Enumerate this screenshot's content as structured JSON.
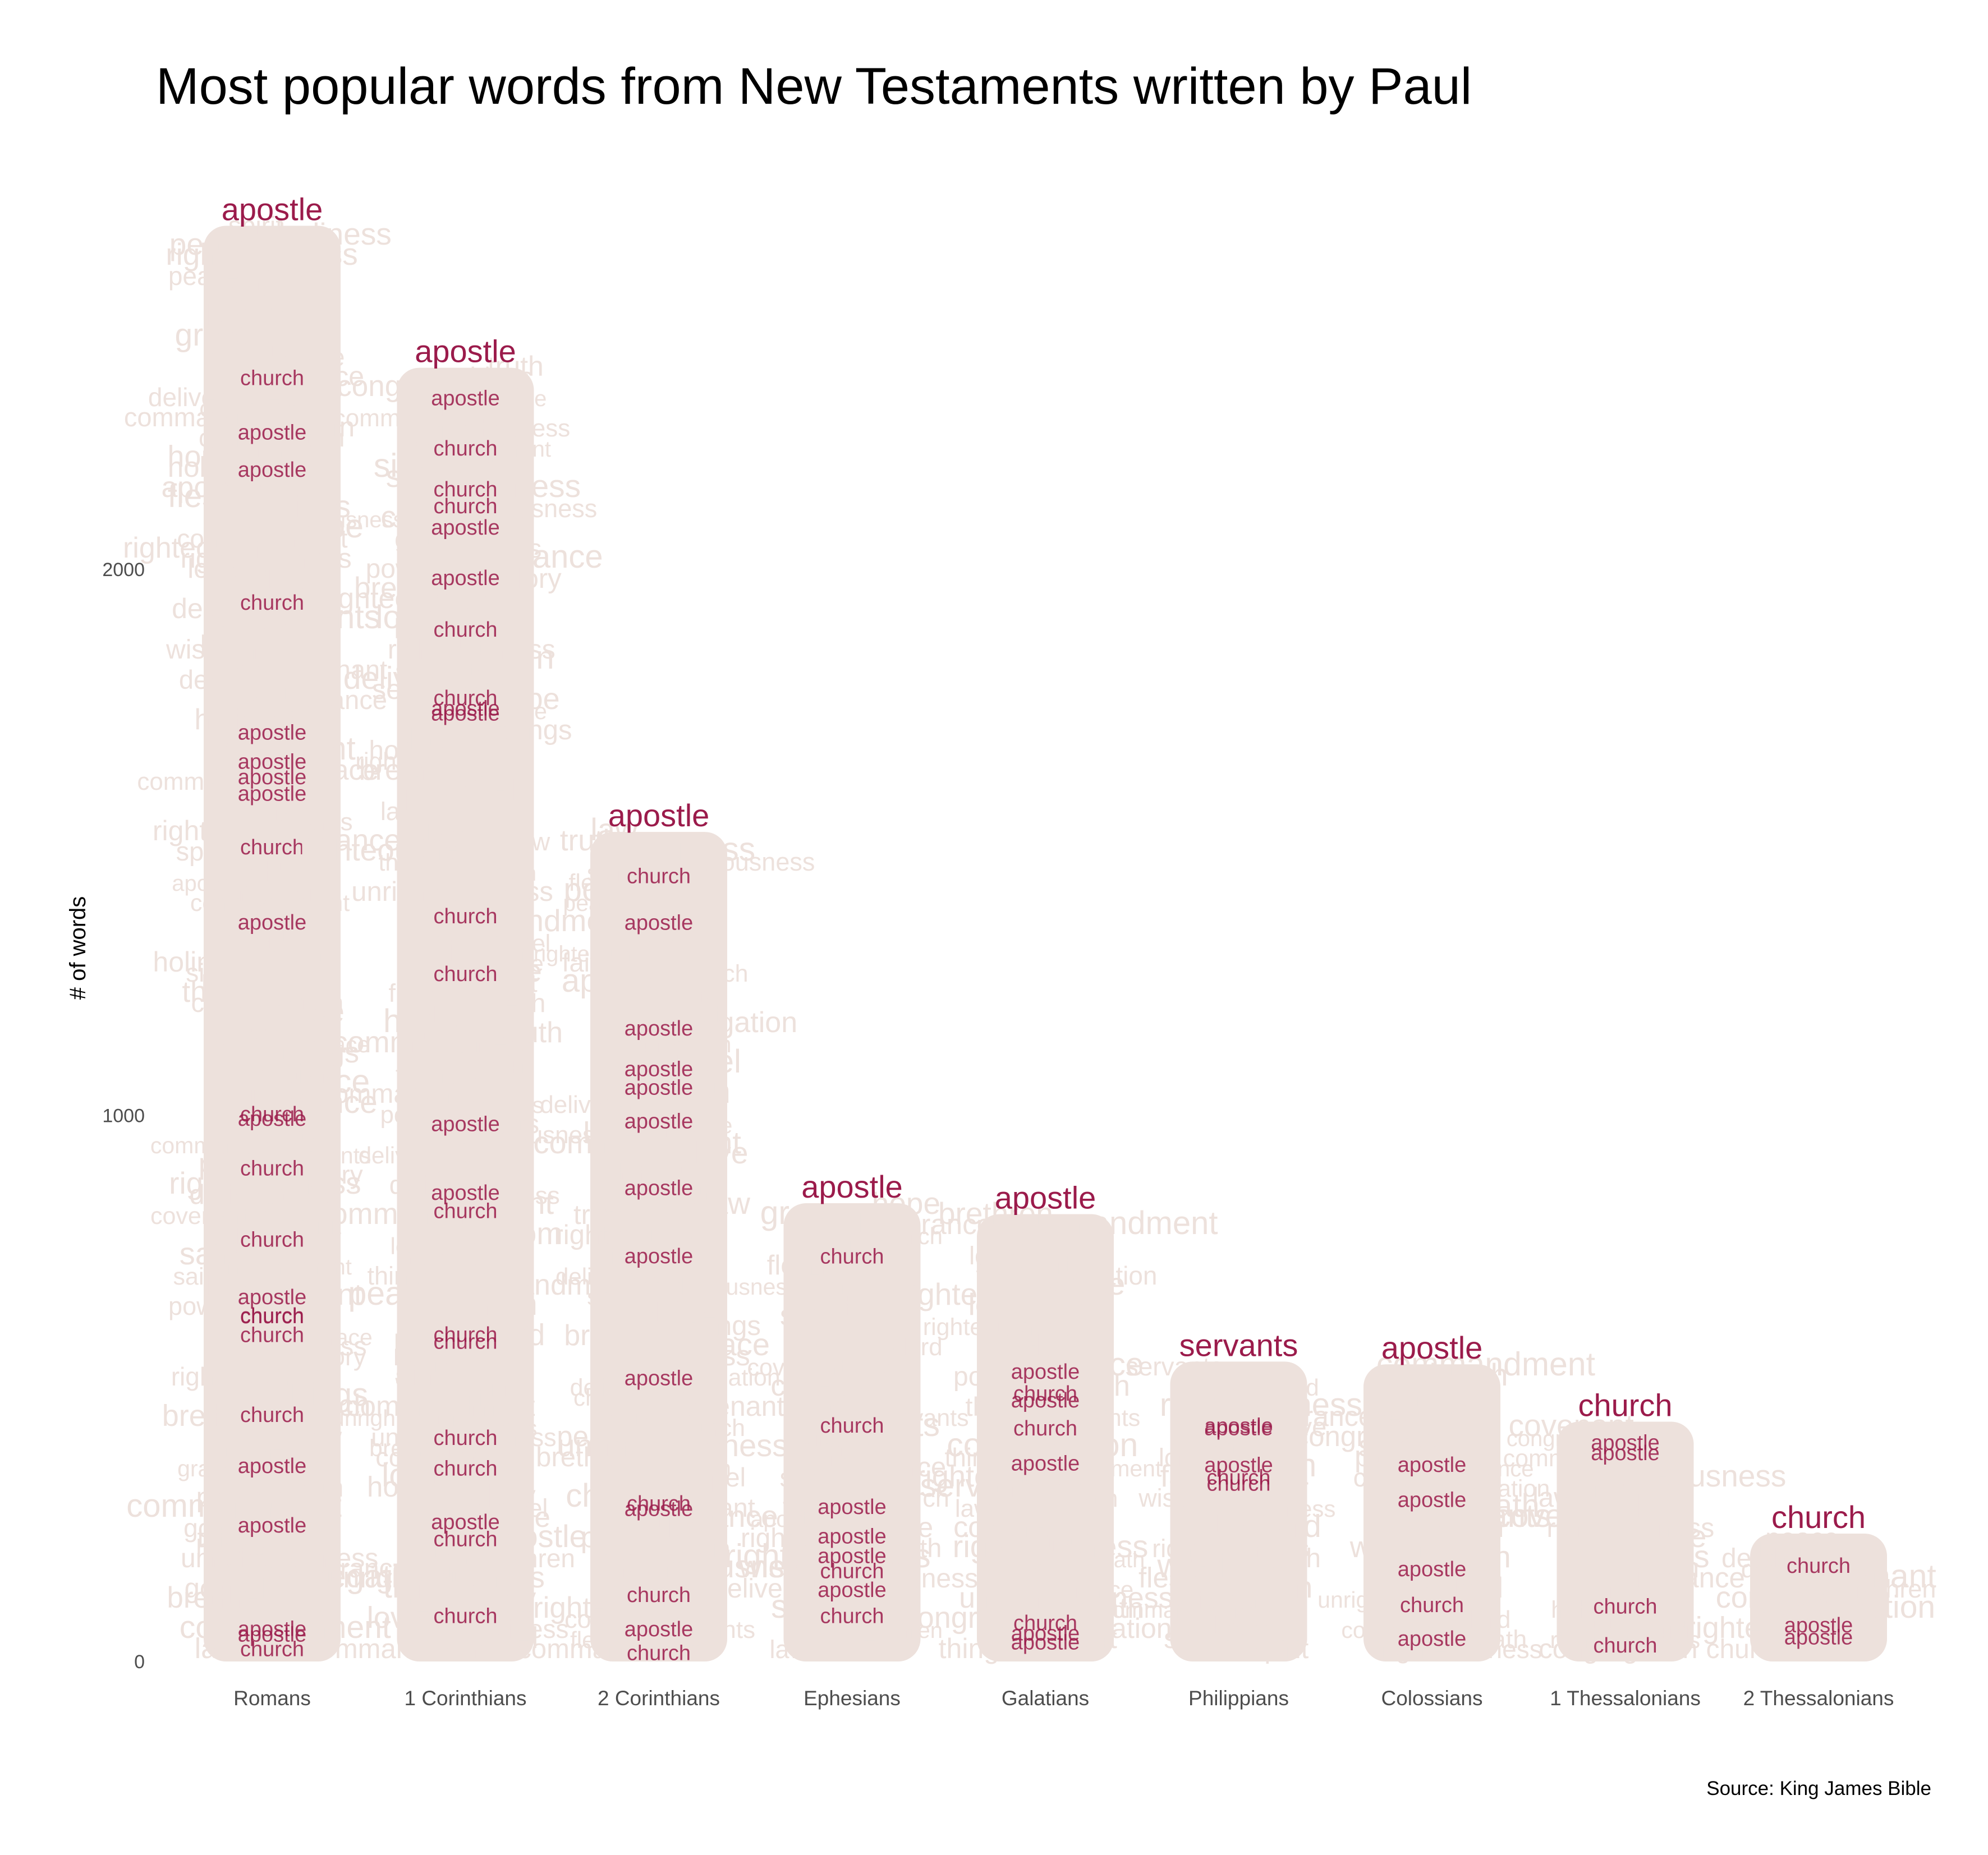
{
  "chart_data": {
    "type": "bar",
    "title": "Most popular words from New Testaments written by Paul",
    "ylabel": "# of words",
    "xlabel": "",
    "caption": "Source: King James Bible",
    "ylim": [
      0,
      2700
    ],
    "yticks": [
      0,
      1000,
      2000
    ],
    "ytick_labels": [
      "0",
      "1000",
      "2000"
    ],
    "categories": [
      "Romans",
      "1 Corinthians",
      "2 Corinthians",
      "Ephesians",
      "Galatians",
      "Philippians",
      "Colossians",
      "1 Thessalonians",
      "2 Thessalonians"
    ],
    "values": [
      2660,
      2400,
      1550,
      870,
      850,
      580,
      575,
      470,
      265
    ],
    "top_words": [
      "apostle",
      "apostle",
      "apostle",
      "apostle",
      "apostle",
      "servants",
      "apostle",
      "church",
      "church"
    ],
    "grid": false,
    "legend": "none",
    "colors": {
      "background_words": "#ede1dc",
      "highlight_words": "#9b1b4b"
    },
    "stacked_words": [
      "righteousness",
      "congregation",
      "commandment",
      "deliverance",
      "covenant",
      "unrighteousness",
      "spirit",
      "brethren",
      "church",
      "apostle",
      "servants",
      "wrath",
      "faith",
      "grace",
      "law",
      "sin",
      "gospel",
      "flesh",
      "death",
      "love",
      "hope",
      "peace",
      "glory",
      "lord",
      "saints",
      "wisdom",
      "power",
      "truth",
      "holiness",
      "things"
    ]
  }
}
